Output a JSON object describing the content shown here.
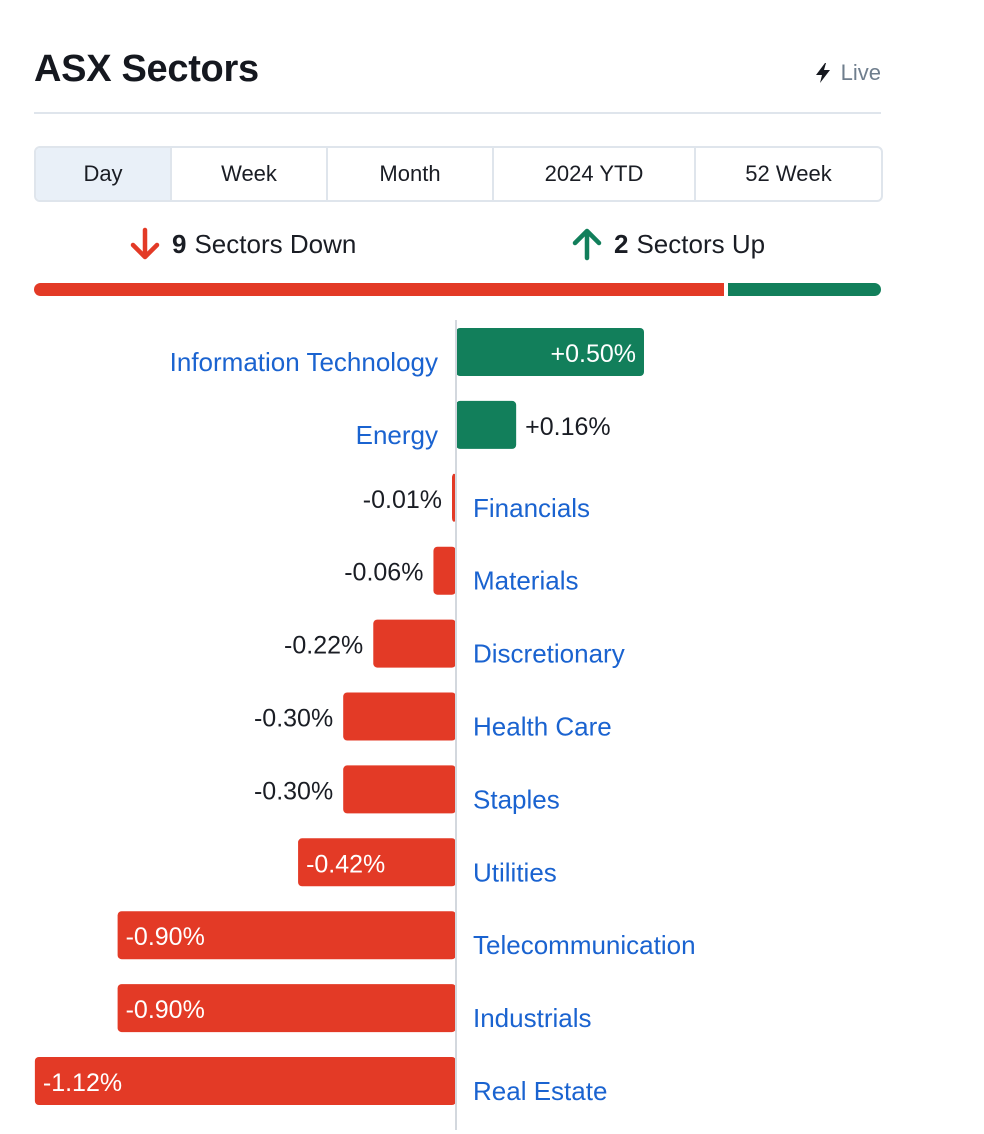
{
  "header": {
    "title": "ASX Sectors",
    "live_label": "Live",
    "live_icon": "lightning-bolt-icon"
  },
  "tabs": [
    {
      "label": "Day",
      "active": true
    },
    {
      "label": "Week",
      "active": false
    },
    {
      "label": "Month",
      "active": false
    },
    {
      "label": "2024 YTD",
      "active": false
    },
    {
      "label": "52 Week",
      "active": false
    }
  ],
  "summary": {
    "down_count": "9",
    "down_label": "Sectors Down",
    "up_count": "2",
    "up_label": "Sectors Up",
    "down_icon": "arrow-down-icon",
    "up_icon": "arrow-up-icon"
  },
  "colors": {
    "positive": "#127f5b",
    "negative": "#e33a26",
    "link": "#1a63d0",
    "text": "#1a1d24"
  },
  "chart_data": {
    "type": "bar",
    "orientation": "horizontal-diverging",
    "unit": "%",
    "series": [
      {
        "category": "Information Technology",
        "value": 0.5,
        "label": "+0.50%"
      },
      {
        "category": "Energy",
        "value": 0.16,
        "label": "+0.16%"
      },
      {
        "category": "Financials",
        "value": -0.01,
        "label": "-0.01%"
      },
      {
        "category": "Materials",
        "value": -0.06,
        "label": "-0.06%"
      },
      {
        "category": "Discretionary",
        "value": -0.22,
        "label": "-0.22%"
      },
      {
        "category": "Health Care",
        "value": -0.3,
        "label": "-0.30%"
      },
      {
        "category": "Staples",
        "value": -0.3,
        "label": "-0.30%"
      },
      {
        "category": "Utilities",
        "value": -0.42,
        "label": "-0.42%"
      },
      {
        "category": "Telecommunication",
        "value": -0.9,
        "label": "-0.90%"
      },
      {
        "category": "Industrials",
        "value": -0.9,
        "label": "-0.90%"
      },
      {
        "category": "Real Estate",
        "value": -1.12,
        "label": "-1.12%"
      }
    ]
  }
}
